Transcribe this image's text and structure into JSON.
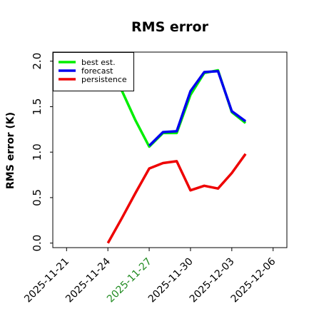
{
  "chart_data": {
    "type": "line",
    "title": "RMS error",
    "xlabel": "",
    "ylabel": "RMS error (K)",
    "xlim": [
      "2025-11-20",
      "2025-12-07"
    ],
    "ylim": [
      -0.05,
      2.1
    ],
    "x_ticks": [
      "2025-11-21",
      "2025-11-24",
      "2025-11-27",
      "2025-11-30",
      "2025-12-03",
      "2025-12-06"
    ],
    "x_tick_highlight": "2025-11-27",
    "x_tick_highlight_color": "#228B22",
    "y_ticks": [
      "0.0",
      "0.5",
      "1.0",
      "1.5",
      "2.0"
    ],
    "y_tick_values": [
      0.0,
      0.5,
      1.0,
      1.5,
      2.0
    ],
    "grid": false,
    "legend": {
      "location": "top-left"
    },
    "series": [
      {
        "name": "best est.",
        "color": "#00ee00",
        "x": [
          "2025-11-25",
          "2025-11-26",
          "2025-11-27",
          "2025-11-28",
          "2025-11-29",
          "2025-11-30",
          "2025-12-01",
          "2025-12-02",
          "2025-12-03",
          "2025-12-04"
        ],
        "y": [
          1.68,
          1.35,
          1.06,
          1.21,
          1.21,
          1.63,
          1.87,
          1.9,
          1.44,
          1.32
        ]
      },
      {
        "name": "forecast",
        "color": "#0000ee",
        "x": [
          "2025-11-27",
          "2025-11-28",
          "2025-11-29",
          "2025-11-30",
          "2025-12-01",
          "2025-12-02",
          "2025-12-03",
          "2025-12-04"
        ],
        "y": [
          1.07,
          1.22,
          1.23,
          1.67,
          1.88,
          1.89,
          1.45,
          1.34
        ]
      },
      {
        "name": "persistence",
        "color": "#ee0000",
        "x": [
          "2025-11-24",
          "2025-11-25",
          "2025-11-26",
          "2025-11-27",
          "2025-11-28",
          "2025-11-29",
          "2025-11-30",
          "2025-12-01",
          "2025-12-02",
          "2025-12-03",
          "2025-12-04"
        ],
        "y": [
          0.0,
          0.27,
          0.55,
          0.82,
          0.88,
          0.9,
          0.58,
          0.63,
          0.6,
          0.77,
          0.98
        ]
      }
    ]
  }
}
